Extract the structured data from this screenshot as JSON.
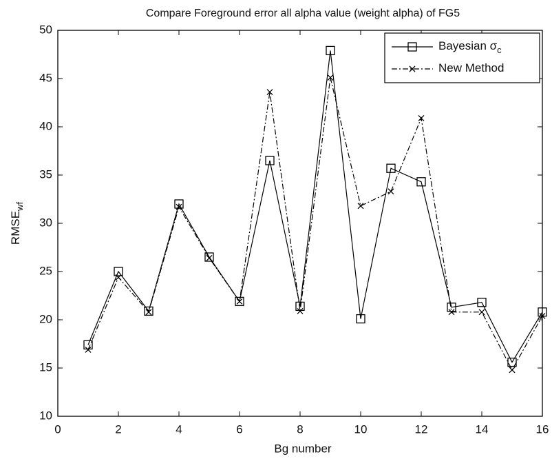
{
  "chart_data": {
    "type": "line",
    "title": "Compare Foreground error all alpha value (weight alpha) of FG5",
    "xlabel": "Bg number",
    "ylabel": "RMSE",
    "ylabel_sub": "wf",
    "x": [
      1,
      2,
      3,
      4,
      5,
      6,
      7,
      8,
      9,
      10,
      11,
      12,
      13,
      14,
      15,
      16
    ],
    "series": [
      {
        "name": "Bayesian σ",
        "name_sub": "c",
        "color": "#000000",
        "marker": "square",
        "dash": "solid",
        "values": [
          17.4,
          25.0,
          20.9,
          32.0,
          26.5,
          21.9,
          36.5,
          21.4,
          47.9,
          20.1,
          35.7,
          34.3,
          21.3,
          21.8,
          15.6,
          20.8
        ]
      },
      {
        "name": "New Method",
        "color": "#000000",
        "marker": "x",
        "dash": "dashdot",
        "values": [
          16.9,
          24.4,
          20.8,
          31.7,
          26.4,
          21.9,
          43.6,
          20.9,
          45.1,
          31.8,
          33.3,
          40.9,
          20.8,
          20.8,
          14.8,
          20.4
        ]
      }
    ],
    "xlim": [
      0,
      16
    ],
    "xticks": [
      0,
      2,
      4,
      6,
      8,
      10,
      12,
      14,
      16
    ],
    "ylim": [
      10,
      50
    ],
    "yticks": [
      10,
      15,
      20,
      25,
      30,
      35,
      40,
      45,
      50
    ],
    "legend": "top-right"
  }
}
